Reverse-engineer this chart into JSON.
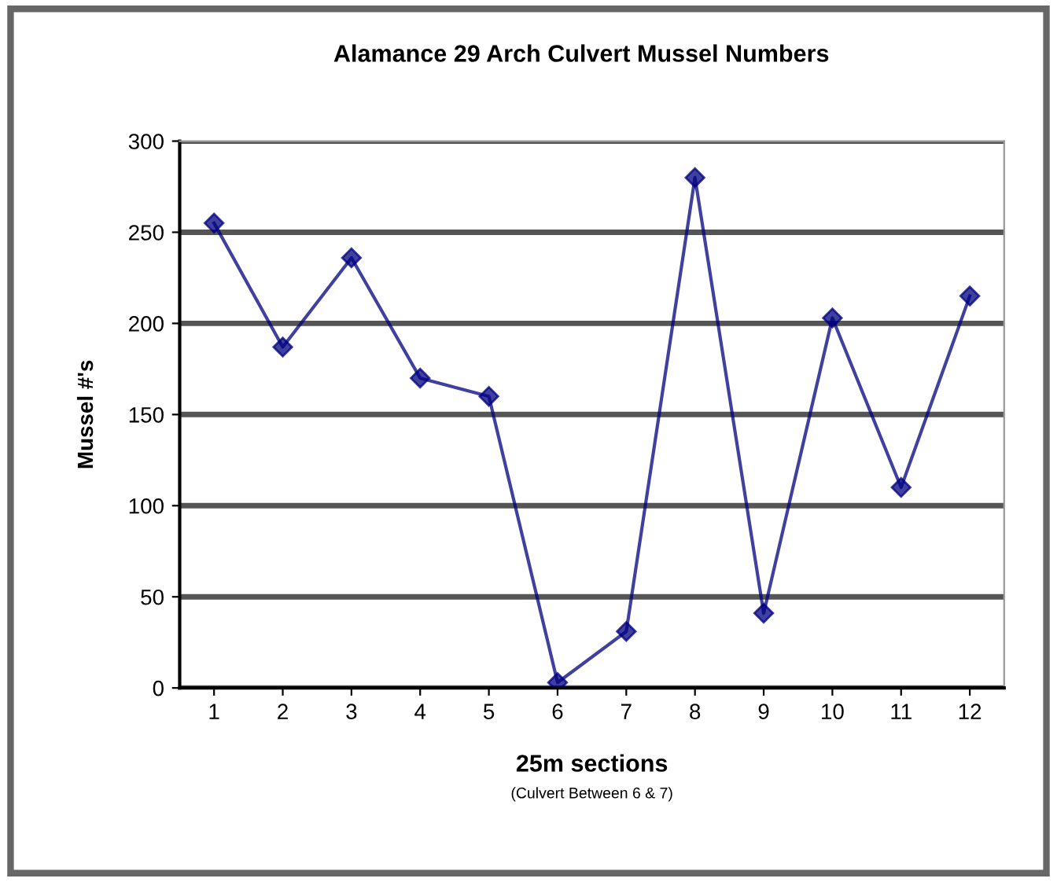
{
  "chart_data": {
    "type": "line",
    "title": "Alamance 29 Arch Culvert Mussel Numbers",
    "xlabel": "25m sections",
    "ylabel": "Mussel #'s",
    "annotations": [
      "(Culvert Between 6 & 7)"
    ],
    "categories": [
      "1",
      "2",
      "3",
      "4",
      "5",
      "6",
      "7",
      "8",
      "9",
      "10",
      "11",
      "12"
    ],
    "series": [
      {
        "color": "#000080",
        "values": [
          255,
          187,
          236,
          170,
          160,
          3,
          31,
          280,
          41,
          203,
          110,
          215
        ]
      }
    ],
    "ylim": [
      0,
      300
    ],
    "yticks": [
      0,
      50,
      100,
      150,
      200,
      250,
      300
    ],
    "grid": "y",
    "marker": "diamond",
    "line_style": "solid"
  }
}
